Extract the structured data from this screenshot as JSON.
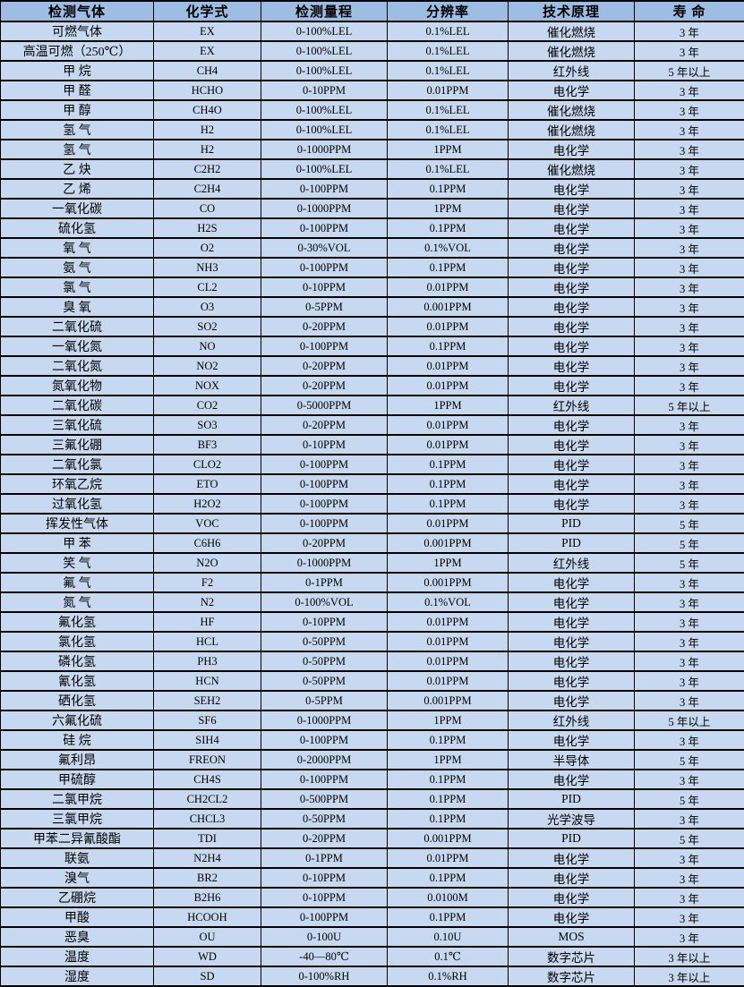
{
  "colors": {
    "header_bg": "#9ebde3",
    "row_bg": "#c7d9f1",
    "border": "#000000",
    "text": "#000000"
  },
  "table": {
    "columns": [
      "检测气体",
      "化学式",
      "检测量程",
      "分辨率",
      "技术原理",
      "寿 命"
    ],
    "rows": [
      [
        "可燃气体",
        "EX",
        "0-100%LEL",
        "0.1%LEL",
        "催化燃烧",
        "3 年"
      ],
      [
        "高温可燃（250℃）",
        "EX",
        "0-100%LEL",
        "0.1%LEL",
        "催化燃烧",
        "3 年"
      ],
      [
        "甲 烷",
        "CH4",
        "0-100%LEL",
        "0.1%LEL",
        "红外线",
        "5 年以上"
      ],
      [
        "甲 醛",
        "HCHO",
        "0-10PPM",
        "0.01PPM",
        "电化学",
        "3 年"
      ],
      [
        "甲 醇",
        "CH4O",
        "0-100%LEL",
        "0.1%LEL",
        "催化燃烧",
        "3 年"
      ],
      [
        "氢 气",
        "H2",
        "0-100%LEL",
        "0.1%LEL",
        "催化燃烧",
        "3 年"
      ],
      [
        "氢 气",
        "H2",
        "0-1000PPM",
        "1PPM",
        "电化学",
        "3 年"
      ],
      [
        "乙 炔",
        "C2H2",
        "0-100%LEL",
        "0.1%LEL",
        "催化燃烧",
        "3 年"
      ],
      [
        "乙 烯",
        "C2H4",
        "0-100PPM",
        "0.1PPM",
        "电化学",
        "3 年"
      ],
      [
        "一氧化碳",
        "CO",
        "0-1000PPM",
        "1PPM",
        "电化学",
        "3 年"
      ],
      [
        "硫化氢",
        "H2S",
        "0-100PPM",
        "0.1PPM",
        "电化学",
        "3 年"
      ],
      [
        "氧 气",
        "O2",
        "0-30%VOL",
        "0.1%VOL",
        "电化学",
        "3 年"
      ],
      [
        "氨 气",
        "NH3",
        "0-100PPM",
        "0.1PPM",
        "电化学",
        "3 年"
      ],
      [
        "氯 气",
        "CL2",
        "0-10PPM",
        "0.01PPM",
        "电化学",
        "3 年"
      ],
      [
        "臭 氧",
        "O3",
        "0-5PPM",
        "0.001PPM",
        "电化学",
        "3 年"
      ],
      [
        "二氧化硫",
        "SO2",
        "0-20PPM",
        "0.01PPM",
        "电化学",
        "3 年"
      ],
      [
        "一氧化氮",
        "NO",
        "0-100PPM",
        "0.1PPM",
        "电化学",
        "3 年"
      ],
      [
        "二氧化氮",
        "NO2",
        "0-20PPM",
        "0.01PPM",
        "电化学",
        "3 年"
      ],
      [
        "氮氧化物",
        "NOX",
        "0-20PPM",
        "0.01PPM",
        "电化学",
        "3 年"
      ],
      [
        "二氧化碳",
        "CO2",
        "0-5000PPM",
        "1PPM",
        "红外线",
        "5 年以上"
      ],
      [
        "三氧化硫",
        "SO3",
        "0-20PPM",
        "0.01PPM",
        "电化学",
        "3 年"
      ],
      [
        "三氟化硼",
        "BF3",
        "0-10PPM",
        "0.01PPM",
        "电化学",
        "3 年"
      ],
      [
        "二氧化氯",
        "CLO2",
        "0-100PPM",
        "0.1PPM",
        "电化学",
        "3 年"
      ],
      [
        "环氧乙烷",
        "ETO",
        "0-100PPM",
        "0.1PPM",
        "电化学",
        "3 年"
      ],
      [
        "过氧化氢",
        "H2O2",
        "0-100PPM",
        "0.1PPM",
        "电化学",
        "3 年"
      ],
      [
        "挥发性气体",
        "VOC",
        "0-100PPM",
        "0.01PPM",
        "PID",
        "5 年"
      ],
      [
        "甲 苯",
        "C6H6",
        "0-20PPM",
        "0.001PPM",
        "PID",
        "5 年"
      ],
      [
        "笑 气",
        "N2O",
        "0-1000PPM",
        "1PPM",
        "红外线",
        "5 年"
      ],
      [
        "氟 气",
        "F2",
        "0-1PPM",
        "0.001PPM",
        "电化学",
        "3 年"
      ],
      [
        "氮 气",
        "N2",
        "0-100%VOL",
        "0.1%VOL",
        "电化学",
        "3 年"
      ],
      [
        "氟化氢",
        "HF",
        "0-10PPM",
        "0.01PPM",
        "电化学",
        "3 年"
      ],
      [
        "氯化氢",
        "HCL",
        "0-50PPM",
        "0.01PPM",
        "电化学",
        "3 年"
      ],
      [
        "磷化氢",
        "PH3",
        "0-50PPM",
        "0.01PPM",
        "电化学",
        "3 年"
      ],
      [
        "氰化氢",
        "HCN",
        "0-50PPM",
        "0.01PPM",
        "电化学",
        "3 年"
      ],
      [
        "硒化氢",
        "SEH2",
        "0-5PPM",
        "0.001PPM",
        "电化学",
        "3 年"
      ],
      [
        "六氟化硫",
        "SF6",
        "0-1000PPM",
        "1PPM",
        "红外线",
        "5 年以上"
      ],
      [
        "硅 烷",
        "SIH4",
        "0-100PPM",
        "0.1PPM",
        "电化学",
        "3 年"
      ],
      [
        "氟利昂",
        "FREON",
        "0-2000PPM",
        "1PPM",
        "半导体",
        "5 年"
      ],
      [
        "甲硫醇",
        "CH4S",
        "0-100PPM",
        "0.1PPM",
        "电化学",
        "3 年"
      ],
      [
        "二氯甲烷",
        "CH2CL2",
        "0-500PPM",
        "0.1PPM",
        "PID",
        "5 年"
      ],
      [
        "三氯甲烷",
        "CHCL3",
        "0-50PPM",
        "0.1PPM",
        "光学波导",
        "3 年"
      ],
      [
        "甲苯二异氰酸酯",
        "TDI",
        "0-20PPM",
        "0.001PPM",
        "PID",
        "5 年"
      ],
      [
        "联氨",
        "N2H4",
        "0-1PPM",
        "0.01PPM",
        "电化学",
        "3 年"
      ],
      [
        "溴气",
        "BR2",
        "0-10PPM",
        "0.1PPM",
        "电化学",
        "3 年"
      ],
      [
        "乙硼烷",
        "B2H6",
        "0-10PPM",
        "0.0100M",
        "电化学",
        "3 年"
      ],
      [
        "甲酸",
        "HCOOH",
        "0-100PPM",
        "0.1PPM",
        "电化学",
        "3 年"
      ],
      [
        "恶臭",
        "OU",
        "0-100U",
        "0.10U",
        "MOS",
        "3 年"
      ],
      [
        "温度",
        "WD",
        "-40—80℃",
        "0.1℃",
        "数字芯片",
        "3 年以上"
      ],
      [
        "湿度",
        "SD",
        "0-100%RH",
        "0.1%RH",
        "数字芯片",
        "3 年以上"
      ]
    ]
  }
}
